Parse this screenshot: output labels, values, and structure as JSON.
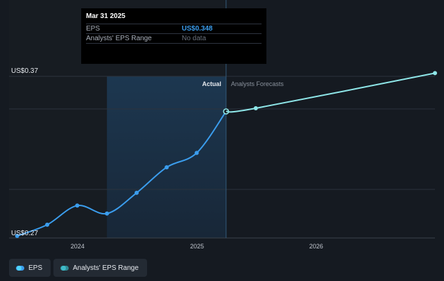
{
  "chart_data": {
    "type": "line",
    "y_top_label": "US$0.37",
    "y_bottom_label": "US$0.27",
    "ylim": [
      0.27,
      0.37
    ],
    "x_ticks": [
      "2024",
      "2025",
      "2026"
    ],
    "divider_labels": {
      "actual": "Actual",
      "forecast": "Analysts Forecasts"
    },
    "series": [
      {
        "name": "EPS",
        "color": "#3b9ded",
        "points": [
          {
            "x": "2023-06-30",
            "y": 0.27
          },
          {
            "x": "2023-09-30",
            "y": 0.277
          },
          {
            "x": "2023-12-31",
            "y": 0.289
          },
          {
            "x": "2024-03-31",
            "y": 0.284
          },
          {
            "x": "2024-06-30",
            "y": 0.297
          },
          {
            "x": "2024-09-30",
            "y": 0.313
          },
          {
            "x": "2024-12-31",
            "y": 0.322
          },
          {
            "x": "2025-03-31",
            "y": 0.348
          }
        ]
      },
      {
        "name": "EPS Forecast",
        "color": "#8ee6e8",
        "points": [
          {
            "x": "2025-03-31",
            "y": 0.348
          },
          {
            "x": "2025-06-30",
            "y": 0.35
          },
          {
            "x": "2026-12-31",
            "y": 0.372
          }
        ]
      }
    ],
    "x_range": [
      "2023-06-05",
      "2026-12-31"
    ],
    "forecast_divider": "2025-03-31",
    "highlight_start": "2024-03-31"
  },
  "tooltip": {
    "date": "Mar 31 2025",
    "eps_label": "EPS",
    "eps_value": "US$0.348",
    "range_label": "Analysts' EPS Range",
    "range_value": "No data"
  },
  "legend": {
    "eps_label": "EPS",
    "range_label": "Analysts' EPS Range",
    "eps_color": "#3b9ded",
    "range_color": "#2f8a94"
  }
}
